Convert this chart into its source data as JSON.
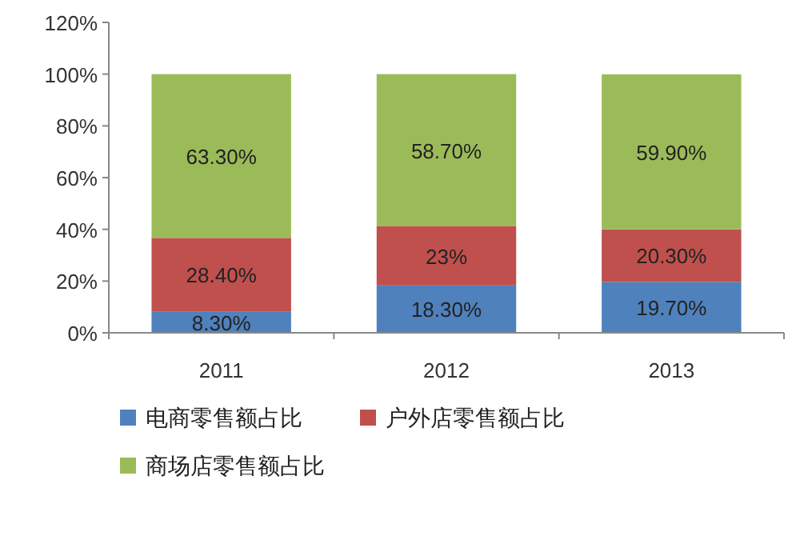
{
  "chart_data": {
    "type": "bar",
    "stacked": true,
    "legend": "bottom",
    "categories": [
      "2011",
      "2012",
      "2013"
    ],
    "ylim": [
      0,
      120
    ],
    "yticks": [
      {
        "value": 0,
        "label": "0%"
      },
      {
        "value": 20,
        "label": "20%"
      },
      {
        "value": 40,
        "label": "40%"
      },
      {
        "value": 60,
        "label": "60%"
      },
      {
        "value": 80,
        "label": "80%"
      },
      {
        "value": 100,
        "label": "100%"
      },
      {
        "value": 120,
        "label": "120%"
      }
    ],
    "series": [
      {
        "name": "电商零售额占比",
        "color": "#4f81bd",
        "values": [
          8.3,
          18.3,
          19.7
        ],
        "value_labels": [
          "8.30%",
          "18.30%",
          "19.70%"
        ]
      },
      {
        "name": "户外店零售额占比",
        "color": "#c0504d",
        "values": [
          28.4,
          23,
          20.3
        ],
        "value_labels": [
          "28.40%",
          "23%",
          "20.30%"
        ]
      },
      {
        "name": "商场店零售额占比",
        "color": "#9bbb59",
        "values": [
          63.3,
          58.7,
          59.9
        ],
        "value_labels": [
          "63.30%",
          "58.70%",
          "59.90%"
        ]
      }
    ]
  }
}
